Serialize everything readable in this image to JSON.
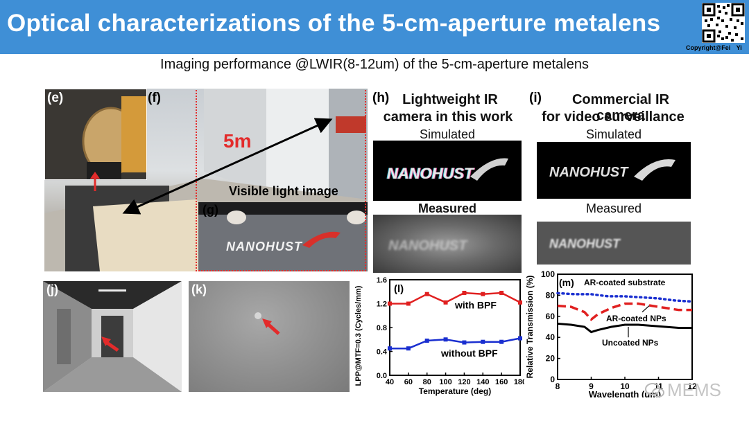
{
  "header": {
    "title": "Optical characterizations of the 5-cm-aperture metalens",
    "copyright": "Copyright@Fei Yi"
  },
  "subtitle": "Imaging performance @LWIR(8-12um) of the 5-cm-aperture metalens",
  "panels": {
    "e": "(e)",
    "f": "(f)",
    "g": "(g)",
    "h": "(h)",
    "i": "(i)",
    "j": "(j)",
    "k": "(k)",
    "distance": "5m",
    "visible_light": "Visible light image",
    "logo_text": "NANOHUST"
  },
  "comparison": {
    "h_title": [
      "Lightweight IR",
      "camera in this work"
    ],
    "i_title": [
      "Commercial IR camera",
      "for video surveillance"
    ],
    "simulated": "Simulated",
    "measured": "Measured"
  },
  "watermark": "MEMS",
  "colors": {
    "title_bar": "#3f8fd6",
    "red_series": "#e02020",
    "blue_series": "#1a2fd0",
    "arrow_red": "#e32b2b"
  },
  "chart_data": [
    {
      "type": "line",
      "panel": "(l)",
      "xlabel": "Temperature (deg)",
      "ylabel": "LPP@MTF=0.3 (Cycles/mm)",
      "x": [
        40,
        60,
        80,
        100,
        120,
        140,
        160,
        180
      ],
      "xlim": [
        40,
        180
      ],
      "ylim": [
        0.0,
        1.6
      ],
      "xticks": [
        "40",
        "60",
        "80",
        "100",
        "120",
        "140",
        "160",
        "180"
      ],
      "yticks": [
        "0.0",
        "0.4",
        "0.8",
        "1.2",
        "1.6"
      ],
      "series": [
        {
          "name": "with BPF",
          "color": "#e02020",
          "values": [
            1.2,
            1.2,
            1.36,
            1.22,
            1.38,
            1.36,
            1.38,
            1.22
          ]
        },
        {
          "name": "without BPF",
          "color": "#1a2fd0",
          "values": [
            0.45,
            0.45,
            0.58,
            0.6,
            0.55,
            0.56,
            0.56,
            0.62
          ]
        }
      ]
    },
    {
      "type": "line",
      "panel": "(m)",
      "xlabel": "Wavelength (um)",
      "ylabel": "Relative Transmission (%)",
      "xlim": [
        8,
        12
      ],
      "ylim": [
        0,
        100
      ],
      "xticks": [
        "8",
        "9",
        "10",
        "11",
        "12"
      ],
      "yticks": [
        "0",
        "20",
        "40",
        "60",
        "80",
        "100"
      ],
      "series": [
        {
          "name": "AR-coated substrate",
          "style": "dotted",
          "color": "#1a2fd0",
          "x": [
            8,
            8.5,
            9,
            9.5,
            10,
            10.5,
            11,
            11.5,
            12
          ],
          "values": [
            82,
            81,
            81,
            79,
            79,
            78,
            77,
            75,
            74
          ]
        },
        {
          "name": "AR-coated NPs",
          "style": "dashed",
          "color": "#e02020",
          "x": [
            8,
            8.4,
            8.8,
            9.0,
            9.2,
            9.6,
            10,
            10.4,
            10.8,
            11.2,
            11.6,
            12
          ],
          "values": [
            70,
            69,
            64,
            57,
            62,
            68,
            72,
            72,
            70,
            68,
            66,
            66
          ]
        },
        {
          "name": "Uncoated NPs",
          "style": "solid",
          "color": "#000000",
          "x": [
            8,
            8.4,
            8.8,
            9.0,
            9.2,
            9.6,
            10,
            10.4,
            10.8,
            11.2,
            11.6,
            12
          ],
          "values": [
            53,
            52,
            50,
            45,
            47,
            50,
            52,
            52,
            51,
            50,
            49,
            49
          ]
        }
      ]
    }
  ]
}
